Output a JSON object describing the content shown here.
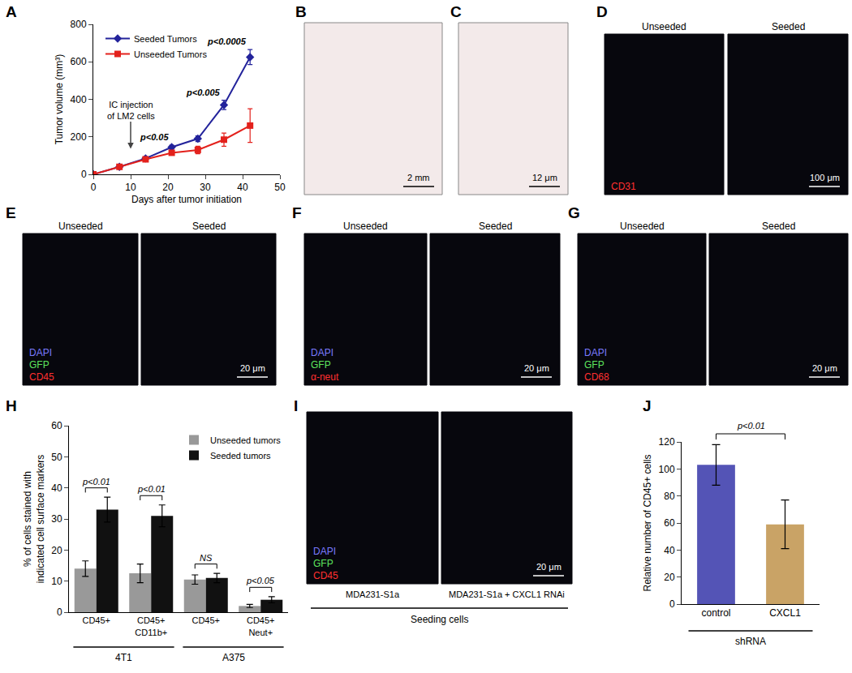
{
  "chart_data": [
    {
      "panel": "A",
      "type": "line",
      "x": [
        0,
        7,
        14,
        21,
        28,
        35,
        42
      ],
      "xlabel": "Days after tumor initiation",
      "ylabel": "Tumor volume (mm³)",
      "xlim": [
        0,
        50
      ],
      "xticks": [
        0,
        10,
        20,
        30,
        40,
        50
      ],
      "ylim": [
        0,
        800
      ],
      "yticks": [
        0,
        200,
        400,
        600,
        800
      ],
      "grid": false,
      "legend": "upper left",
      "series": [
        {
          "name": "Seeded Tumors",
          "color": "#23239b",
          "marker": "diamond",
          "values": [
            0,
            40,
            85,
            145,
            190,
            370,
            625
          ],
          "errors": [
            0,
            5,
            8,
            10,
            15,
            25,
            40
          ]
        },
        {
          "name": "Unseeded Tumors",
          "color": "#e3211c",
          "marker": "square",
          "values": [
            0,
            40,
            80,
            115,
            130,
            185,
            260
          ],
          "errors": [
            0,
            5,
            10,
            12,
            20,
            35,
            90
          ]
        }
      ],
      "annotations": [
        {
          "text": [
            "IC injection",
            "of LM2 cells"
          ],
          "x": 10
        },
        {
          "text": "p<0.05",
          "x": 21
        },
        {
          "text": "p<0.005",
          "x": 35
        },
        {
          "text": "p<0.0005",
          "x": 42
        }
      ]
    },
    {
      "panel": "H",
      "type": "bar",
      "categories": [
        "CD45+",
        "CD45+ CD11b+",
        "CD45+",
        "CD45+ Neut+"
      ],
      "groups": [
        "4T1",
        "4T1",
        "A375",
        "A375"
      ],
      "ylabel": [
        "% of cells stained with",
        "indicated cell surface markers"
      ],
      "ylim": [
        0,
        60
      ],
      "yticks": [
        0,
        10,
        20,
        30,
        40,
        50,
        60
      ],
      "grid": false,
      "legend": "upper right",
      "series": [
        {
          "name": "Unseeded tumors",
          "color": "#999999",
          "values": [
            14,
            12.5,
            10.5,
            2
          ],
          "errors": [
            2.5,
            3,
            1.5,
            0.5
          ]
        },
        {
          "name": "Seeded tumors",
          "color": "#111111",
          "values": [
            33,
            31,
            11,
            4
          ],
          "errors": [
            4,
            3.5,
            1.5,
            1
          ]
        }
      ],
      "significance": [
        "p<0.01",
        "p<0.01",
        "NS",
        "p<0.05"
      ]
    },
    {
      "panel": "J",
      "type": "bar",
      "categories": [
        "control",
        "CXCL1"
      ],
      "group": "shRNA",
      "colors": [
        "#5454b6",
        "#c9a366"
      ],
      "values": [
        103,
        59
      ],
      "errors": [
        15,
        18
      ],
      "ylabel": "Relative number of CD45+ cells",
      "ylim": [
        0,
        120
      ],
      "yticks": [
        0,
        20,
        40,
        60,
        80,
        100,
        120
      ],
      "grid": false,
      "significance": "p<0.01"
    }
  ],
  "images": [
    {
      "panel": "B",
      "scale_bar": "2 mm"
    },
    {
      "panel": "C",
      "scale_bar": "12 μm"
    },
    {
      "panel": "D",
      "conditions": [
        "Unseeded",
        "Seeded"
      ],
      "stains": [
        {
          "text": "CD31",
          "color": "#ff3030"
        }
      ],
      "scale_bar": "100 μm"
    },
    {
      "panel": "E",
      "conditions": [
        "Unseeded",
        "Seeded"
      ],
      "stains": [
        {
          "text": "DAPI",
          "color": "#7a7aff"
        },
        {
          "text": "GFP",
          "color": "#5ee65e"
        },
        {
          "text": "CD45",
          "color": "#ff3030"
        }
      ],
      "scale_bar": "20 μm"
    },
    {
      "panel": "F",
      "conditions": [
        "Unseeded",
        "Seeded"
      ],
      "stains": [
        {
          "text": "DAPI",
          "color": "#7a7aff"
        },
        {
          "text": "GFP",
          "color": "#5ee65e"
        },
        {
          "text": "α-neut",
          "color": "#ff3030"
        }
      ],
      "scale_bar": "20 μm"
    },
    {
      "panel": "G",
      "conditions": [
        "Unseeded",
        "Seeded"
      ],
      "stains": [
        {
          "text": "DAPI",
          "color": "#7a7aff"
        },
        {
          "text": "GFP",
          "color": "#5ee65e"
        },
        {
          "text": "CD68",
          "color": "#ff3030"
        }
      ],
      "scale_bar": "20 μm"
    },
    {
      "panel": "I",
      "conditions": [
        "MDA231-S1a",
        "MDA231-S1a + CXCL1 RNAi"
      ],
      "group": "Seeding cells",
      "stains": [
        {
          "text": "DAPI",
          "color": "#7a7aff"
        },
        {
          "text": "GFP",
          "color": "#5ee65e"
        },
        {
          "text": "CD45",
          "color": "#ff3030"
        }
      ],
      "scale_bar": "20 μm"
    }
  ]
}
